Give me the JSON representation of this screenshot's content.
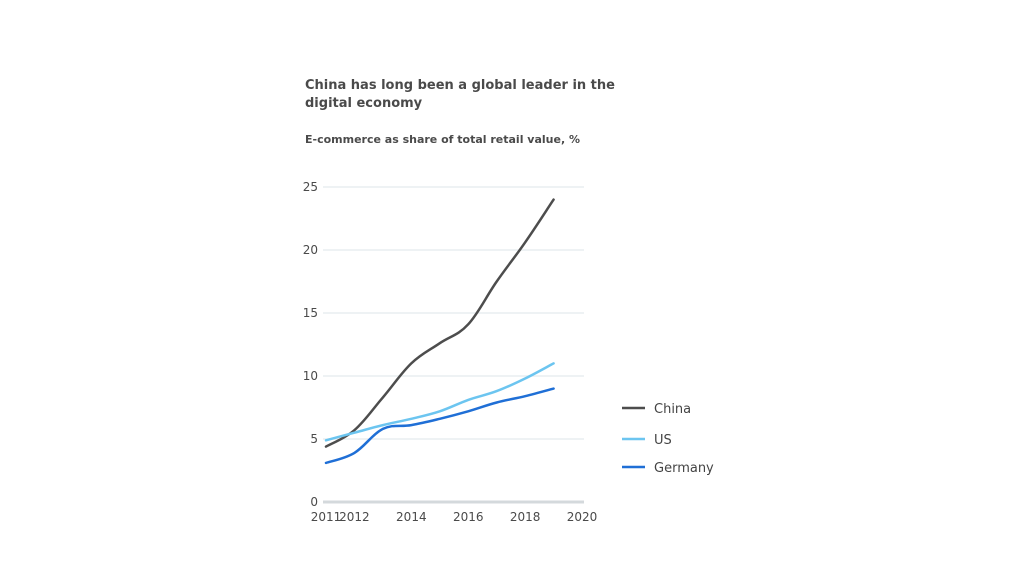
{
  "chart_data": {
    "type": "line",
    "title": "China has long been a global leader in the digital economy",
    "subtitle": "E-commerce as share of total retail value, %",
    "xlabel": "",
    "ylabel": "",
    "xlim": [
      2011,
      2020
    ],
    "ylim": [
      0,
      25
    ],
    "x_ticks": [
      "2011",
      "2012",
      "2014",
      "2016",
      "2018",
      "2020"
    ],
    "y_ticks": [
      "0",
      "5",
      "10",
      "15",
      "20",
      "25"
    ],
    "grid": true,
    "legend_position": "right",
    "x": [
      2011,
      2012,
      2013,
      2014,
      2015,
      2016,
      2017,
      2018,
      2019
    ],
    "series": [
      {
        "name": "China",
        "color": "#4d4d4d",
        "values": [
          4.4,
          5.7,
          8.3,
          11.0,
          12.6,
          14.1,
          17.5,
          20.6,
          24.0
        ]
      },
      {
        "name": "US",
        "color": "#6cc5f0",
        "values": [
          4.9,
          5.5,
          6.1,
          6.6,
          7.2,
          8.1,
          8.8,
          9.8,
          11.0
        ]
      },
      {
        "name": "Germany",
        "color": "#1f6fd6",
        "values": [
          3.1,
          3.9,
          5.8,
          6.1,
          6.6,
          7.2,
          7.9,
          8.4,
          9.0
        ]
      }
    ]
  }
}
